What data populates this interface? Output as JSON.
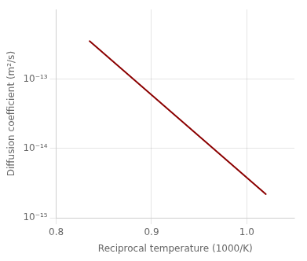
{
  "chart_data": {
    "type": "line",
    "x": [
      0.835,
      1.02
    ],
    "values": [
      3.5e-13,
      2.2e-15
    ],
    "color": "#8b0000",
    "xlabel": "Reciprocal temperature (1000/K)",
    "ylabel": "Diffusion coefficient (m²/s)",
    "xlim": [
      0.8,
      1.05
    ],
    "ylim": [
      1e-15,
      1e-12
    ],
    "xticks": [
      0.8,
      0.9,
      {
        "value": 1.0,
        "label": "1.0"
      }
    ],
    "yticks": [
      {
        "value": 1e-15,
        "label": "10⁻¹⁵"
      },
      {
        "value": 1e-14,
        "label": "10⁻¹⁴"
      },
      {
        "value": 1e-13,
        "label": "10⁻¹³"
      }
    ],
    "log": "y",
    "grid": true
  }
}
